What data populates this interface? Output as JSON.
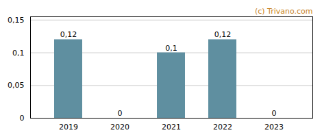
{
  "chart_data": {
    "type": "bar",
    "categories": [
      "2019",
      "2020",
      "2021",
      "2022",
      "2023"
    ],
    "values": [
      0.12,
      0,
      0.1,
      0.12,
      0
    ],
    "value_labels": [
      "0,12",
      "0",
      "0,1",
      "0,12",
      "0"
    ],
    "data_labels": true,
    "color": "#5f8fa0",
    "ylim": [
      0,
      0.155
    ],
    "yticks": [
      0,
      {
        "value": 0.05,
        "label": "0,05"
      },
      {
        "value": 0.1,
        "label": "0,1"
      },
      {
        "value": 0.15,
        "label": "0,15"
      }
    ],
    "grid": true,
    "annotations": [
      "(c) Trivano.com"
    ]
  }
}
